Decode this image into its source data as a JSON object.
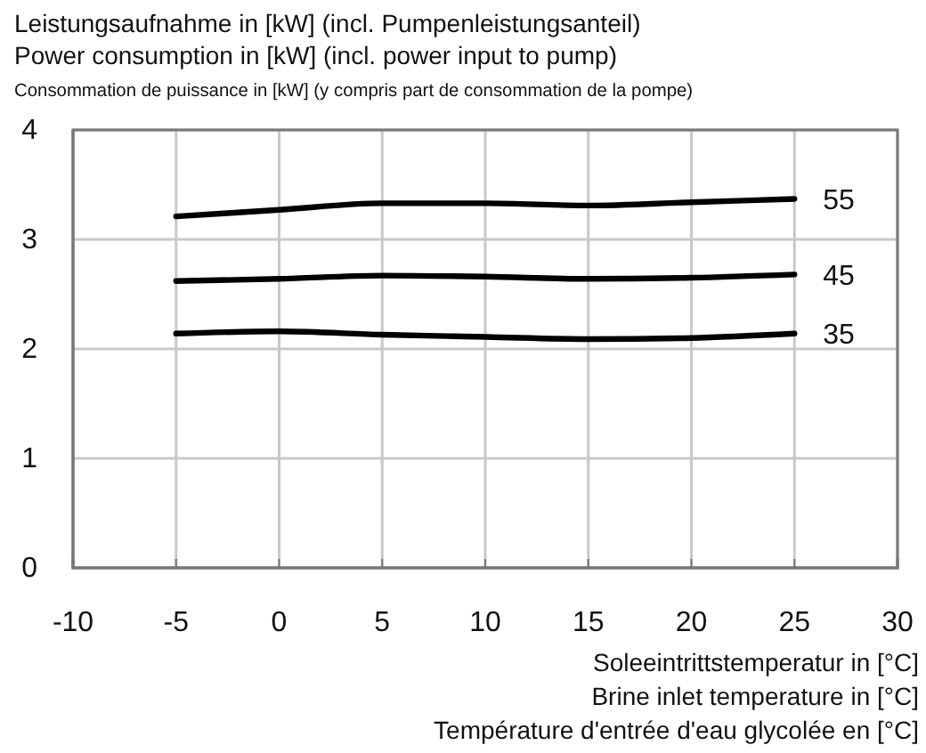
{
  "chart_data": {
    "type": "line",
    "ylabel": "Leistungsaufnahme in [kW] (incl. Pumpenleistungsanteil)\nPower consumption in [kW] (incl. power input to pump)\nConsommation de puissance in [kW] (y compris part de consommation de la pompe)",
    "xlabel": "Soleeintrittstemperatur in [°C]\nBrine inlet temperature in [°C]\nTempérature d'entrée d'eau glycolée en [°C]",
    "x": [
      -5,
      0,
      5,
      10,
      15,
      20,
      25
    ],
    "series": [
      {
        "name": "55",
        "color": "#000000",
        "values": [
          3.21,
          3.27,
          3.33,
          3.33,
          3.31,
          3.34,
          3.37
        ]
      },
      {
        "name": "45",
        "color": "#000000",
        "values": [
          2.62,
          2.64,
          2.67,
          2.66,
          2.64,
          2.65,
          2.68
        ]
      },
      {
        "name": "35",
        "color": "#000000",
        "values": [
          2.14,
          2.16,
          2.13,
          2.11,
          2.09,
          2.1,
          2.14
        ]
      }
    ],
    "xlim": [
      -10,
      30
    ],
    "xticks": [
      -10,
      -5,
      0,
      5,
      10,
      15,
      20,
      25,
      30
    ],
    "ylim": [
      0,
      4
    ],
    "yticks": [
      0,
      1,
      2,
      3,
      4
    ],
    "grid": true,
    "legend": false,
    "marker": "none",
    "line_style": "solid"
  }
}
